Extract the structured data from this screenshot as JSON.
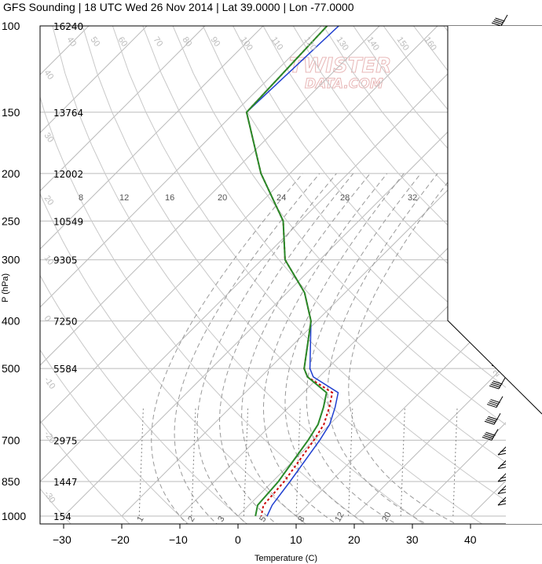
{
  "title": "GFS Sounding | 18 UTC Wed 26 Nov 2014 | Lat 39.0000 | Lon -77.0000",
  "watermark": {
    "line1": "TWISTER",
    "line2": "DATA.COM"
  },
  "chart_data": {
    "type": "skew-t",
    "title": "GFS Sounding | 18 UTC Wed 26 Nov 2014 | Lat 39.0000 | Lon -77.0000",
    "xlabel": "Temperature (C)",
    "ylabel": "P (hPa)",
    "xticks": [
      -30,
      -20,
      -10,
      0,
      10,
      20,
      30,
      40
    ],
    "pressure_levels": [
      {
        "p": 100,
        "label": "100",
        "height": "16240"
      },
      {
        "p": 150,
        "label": "150",
        "height": "13764"
      },
      {
        "p": 200,
        "label": "200",
        "height": "12002"
      },
      {
        "p": 250,
        "label": "250",
        "height": "10549"
      },
      {
        "p": 300,
        "label": "300",
        "height": "9305"
      },
      {
        "p": 400,
        "label": "400",
        "height": "7250"
      },
      {
        "p": 500,
        "label": "500",
        "height": "5584"
      },
      {
        "p": 700,
        "label": "700",
        "height": "2975"
      },
      {
        "p": 850,
        "label": "850",
        "height": "1447"
      },
      {
        "p": 1000,
        "label": "1000",
        "height": "154"
      }
    ],
    "temperature_profile": [
      {
        "p": 100,
        "t": -69
      },
      {
        "p": 150,
        "t": -68
      },
      {
        "p": 200,
        "t": -55
      },
      {
        "p": 250,
        "t": -43
      },
      {
        "p": 300,
        "t": -36
      },
      {
        "p": 350,
        "t": -27
      },
      {
        "p": 400,
        "t": -21
      },
      {
        "p": 500,
        "t": -14
      },
      {
        "p": 520,
        "t": -12
      },
      {
        "p": 560,
        "t": -5
      },
      {
        "p": 600,
        "t": -3
      },
      {
        "p": 650,
        "t": -1
      },
      {
        "p": 700,
        "t": 0
      },
      {
        "p": 850,
        "t": 2
      },
      {
        "p": 950,
        "t": 2.5
      },
      {
        "p": 1000,
        "t": 4
      }
    ],
    "dewpoint_profile": [
      {
        "p": 100,
        "t": -69
      },
      {
        "p": 150,
        "t": -68
      },
      {
        "p": 200,
        "t": -55
      },
      {
        "p": 250,
        "t": -43
      },
      {
        "p": 300,
        "t": -36
      },
      {
        "p": 350,
        "t": -27
      },
      {
        "p": 400,
        "t": -21
      },
      {
        "p": 500,
        "t": -14
      },
      {
        "p": 520,
        "t": -12
      },
      {
        "p": 560,
        "t": -6
      },
      {
        "p": 600,
        "t": -4
      },
      {
        "p": 650,
        "t": -2
      },
      {
        "p": 700,
        "t": -1
      },
      {
        "p": 850,
        "t": 1
      },
      {
        "p": 950,
        "t": 1.5
      },
      {
        "p": 1000,
        "t": 3
      }
    ],
    "parcel_profile": [
      {
        "p": 100,
        "t": -67
      },
      {
        "p": 150,
        "t": -68
      },
      {
        "p": 200,
        "t": -55
      },
      {
        "p": 250,
        "t": -43
      },
      {
        "p": 300,
        "t": -36
      },
      {
        "p": 350,
        "t": -27
      },
      {
        "p": 400,
        "t": -21
      },
      {
        "p": 500,
        "t": -13
      },
      {
        "p": 520,
        "t": -11
      },
      {
        "p": 560,
        "t": -4
      },
      {
        "p": 600,
        "t": -2
      },
      {
        "p": 650,
        "t": 0
      },
      {
        "p": 700,
        "t": 1
      },
      {
        "p": 850,
        "t": 3
      },
      {
        "p": 950,
        "t": 4
      },
      {
        "p": 1000,
        "t": 5
      }
    ],
    "dry_adiabat_labels": [
      "40",
      "50",
      "60",
      "70",
      "80",
      "90",
      "100",
      "110",
      "120",
      "130",
      "140",
      "150",
      "160"
    ],
    "mixing_ratio_labels_top": [
      "8",
      "12",
      "16",
      "20",
      "24",
      "28",
      "32"
    ],
    "mixing_ratio_labels_bottom": [
      "1",
      "2",
      "3",
      "5",
      "8",
      "12",
      "20"
    ],
    "right_edge_labels": [
      "-30",
      "-20",
      "-10",
      "0",
      "10",
      "20",
      "30"
    ],
    "left_edge_labels": [
      "40",
      "30",
      "20",
      "10",
      "0",
      "-10",
      "-20",
      "-30"
    ],
    "wind_barbs_pressure": [
      100,
      150,
      200,
      250,
      300,
      350,
      400,
      450,
      500,
      550,
      600,
      650,
      700,
      750,
      800,
      850,
      900,
      950
    ],
    "colors": {
      "temperature": "#cc0000",
      "dewpoint": "#2a8a2a",
      "parcel": "#1f3fd0",
      "grid": "#bbbbbb"
    }
  }
}
